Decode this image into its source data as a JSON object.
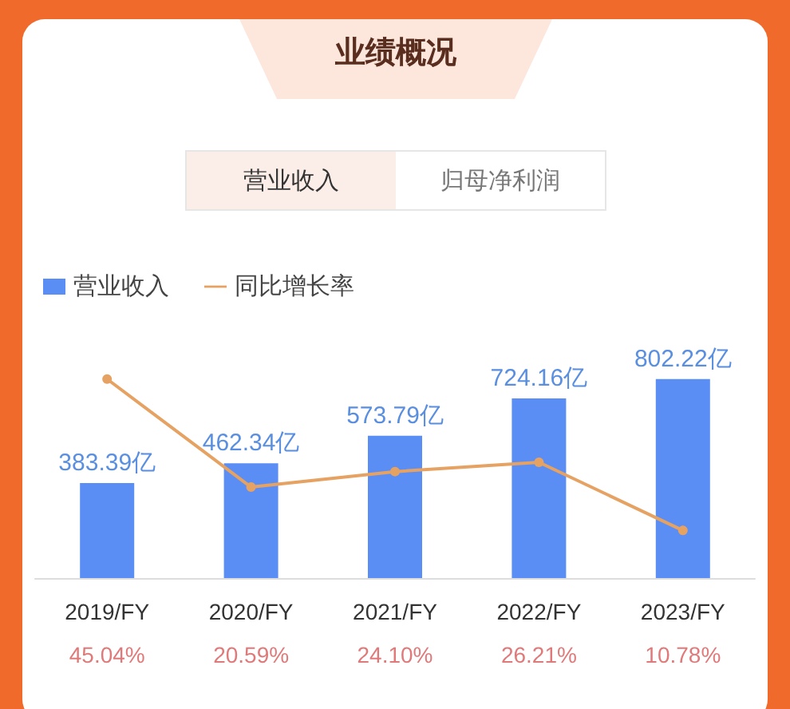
{
  "chart_data": {
    "type": "bar",
    "title": "业绩概况",
    "annotations": [
      "营业收入",
      "归母净利润"
    ],
    "categories": [
      "2019/FY",
      "2020/FY",
      "2021/FY",
      "2022/FY",
      "2023/FY"
    ],
    "series": [
      {
        "name": "营业收入",
        "color": "#5b8ef5",
        "values": [
          383.39,
          462.34,
          573.79,
          724.16,
          802.22
        ],
        "value_labels": [
          "383.39亿",
          "462.34亿",
          "573.79亿",
          "724.16亿",
          "802.22亿"
        ]
      },
      {
        "name": "同比增长率",
        "type": "line",
        "axis": "y2",
        "color": "#e5a262",
        "values": [
          45.04,
          20.59,
          24.1,
          26.21,
          10.78
        ],
        "value_labels": [
          "45.04%",
          "20.59%",
          "24.10%",
          "26.21%",
          "10.78%"
        ]
      }
    ],
    "legend": "top left",
    "marker": "circle"
  }
}
